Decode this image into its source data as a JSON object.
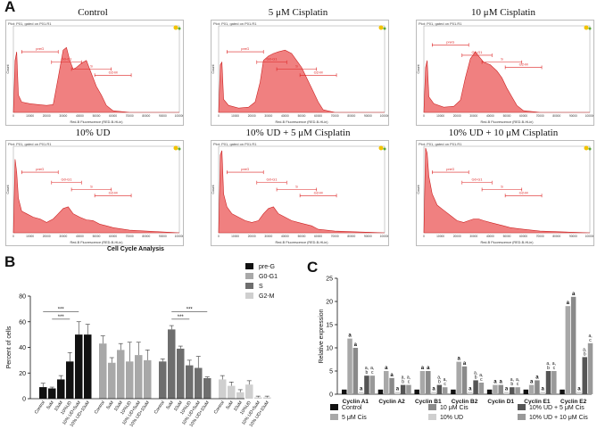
{
  "panels": {
    "a": "A",
    "b": "B",
    "c": "C"
  },
  "panel_a": {
    "caption": "Cell Cycle Analysis",
    "header": "Plot: P01, gated on P01.R1",
    "xlabel": "Red-B Fluorescence (RED-B-HLin)",
    "ylabel": "Count",
    "gates": [
      "preG",
      "G0-G1",
      "S",
      "G2-M"
    ],
    "xticks": [
      "0",
      "10000",
      "20000",
      "30000",
      "40000",
      "50000",
      "60000",
      "70000",
      "80000",
      "90000",
      "100000"
    ],
    "histograms": [
      {
        "title": "Control"
      },
      {
        "title": "5 μM Cisplatin"
      },
      {
        "title": "10 μM Cisplatin"
      },
      {
        "title": "10% UD"
      },
      {
        "title": "10% UD + 5 μM Cisplatin"
      },
      {
        "title": "10% UD + 10 μM Cisplatin"
      }
    ]
  },
  "colors": {
    "hist_fill": "#f08080",
    "hist_stroke": "#cc2222",
    "gate": "#dd2222",
    "bar_black": "#111111",
    "bar_g1": "#a8a8a8",
    "bar_g2": "#6e6e6e",
    "bar_g3": "#cfcfcf",
    "bar_g4": "#8a8a8a"
  },
  "chart_data": [
    {
      "type": "bar",
      "panel": "B",
      "ylabel": "Percent of cells",
      "ylim": [
        0,
        80
      ],
      "yticks": [
        0,
        20,
        40,
        60,
        80
      ],
      "categories": [
        "Control",
        "5uM",
        "10uM",
        "10%UD",
        "10% UD+5uM",
        "10% UD+10uM"
      ],
      "series": [
        {
          "name": "pre-G",
          "values": [
            9,
            8,
            15,
            29,
            50,
            50
          ],
          "errors": [
            3,
            1,
            3,
            7,
            10,
            8
          ]
        },
        {
          "name": "G0-G1",
          "values": [
            43,
            28,
            38,
            29,
            34,
            30
          ],
          "errors": [
            6,
            4,
            5,
            15,
            10,
            8
          ]
        },
        {
          "name": "S",
          "values": [
            29,
            54,
            39,
            26,
            24,
            16
          ],
          "errors": [
            2,
            3,
            2,
            4,
            9,
            1
          ]
        },
        {
          "name": "G2-M",
          "values": [
            15,
            10,
            5,
            11,
            1,
            1
          ],
          "errors": [
            3,
            3,
            2,
            3,
            1,
            1
          ]
        }
      ],
      "significance": [
        {
          "series": "pre-G",
          "label": "***"
        },
        {
          "series": "pre-G",
          "label": "***"
        },
        {
          "series": "S",
          "label": "***"
        },
        {
          "series": "S",
          "label": "***"
        }
      ]
    },
    {
      "type": "bar",
      "panel": "C",
      "ylabel": "Relative expression",
      "ylim": [
        0,
        25
      ],
      "yticks": [
        0,
        5,
        10,
        15,
        20,
        25
      ],
      "categories": [
        "Cyclin A1",
        "Cyclin A2",
        "Cyclin B1",
        "Cyclin B2",
        "Cyclin D1",
        "Cyclin E1",
        "Cyclin E2"
      ],
      "series": [
        {
          "name": "Control",
          "values": [
            1,
            1,
            1,
            1,
            1,
            1,
            1
          ],
          "labels": [
            "",
            "",
            "",
            "",
            "",
            "",
            ""
          ]
        },
        {
          "name": "5 μM Cis",
          "values": [
            12,
            5,
            5,
            7,
            2,
            2,
            19
          ],
          "labels": [
            "a",
            "a",
            "a",
            "a",
            "a",
            "a",
            "a"
          ]
        },
        {
          "name": "10 μM Cis",
          "values": [
            10,
            3.5,
            5,
            6,
            2,
            3,
            21
          ],
          "labels": [
            "a",
            "a",
            "a",
            "a",
            "a",
            "a",
            "a"
          ]
        },
        {
          "name": "10% UD",
          "values": [
            0.5,
            0.5,
            0.5,
            0.5,
            0.5,
            0.5,
            0.5
          ],
          "labels": [
            "a",
            "a",
            "a",
            "a",
            "a",
            "a",
            "a"
          ]
        },
        {
          "name": "10% UD + 5 μM Cis",
          "values": [
            4,
            2,
            2,
            3,
            1.5,
            5,
            8
          ],
          "labels": [
            "a,b",
            "a,b",
            "a,b",
            "a,b",
            "a,b",
            "a,b",
            "a,b"
          ]
        },
        {
          "name": "10% UD + 10 μM Cis",
          "values": [
            4,
            2,
            1.5,
            2.5,
            1.5,
            5,
            11
          ],
          "labels": [
            "a,c",
            "a,c",
            "a,c",
            "a,c",
            "a,c",
            "a,c",
            "a,c"
          ]
        }
      ]
    }
  ]
}
